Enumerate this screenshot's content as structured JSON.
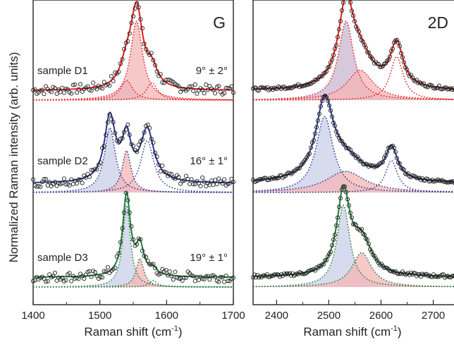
{
  "chart_data": [
    {
      "type": "line",
      "panel_label": "G",
      "xlabel_main": "Raman shift (cm",
      "xlabel_sup": "-1",
      "xlabel_end": ")",
      "ylabel": "Normalized Raman intensity (arb. units)",
      "xlim": [
        1400,
        1700
      ],
      "x_ticks": [
        1400,
        1500,
        1600,
        1700
      ],
      "x_tick_labels": [
        "1400",
        "1500",
        "1600",
        "1700"
      ],
      "y_ticks_shown": false,
      "samples": [
        {
          "name": "sample D1",
          "angle": "9° ± 2°",
          "color": "#e41a1c",
          "baseline": 0.0,
          "peaks": [
            {
              "center": 1540,
              "height": 0.25,
              "fwhm": 22,
              "fill": "#c9b6cf"
            },
            {
              "center": 1555,
              "height": 1.0,
              "fwhm": 22,
              "fill": "#f4b5b5"
            },
            {
              "center": 1578,
              "height": 0.22,
              "fwhm": 20,
              "fill": "none"
            }
          ]
        },
        {
          "name": "sample D2",
          "angle": "16° ± 1°",
          "color": "#2b3590",
          "baseline": 0.0,
          "peaks": [
            {
              "center": 1515,
              "height": 0.85,
              "fwhm": 20,
              "fill": "#c9cfe8"
            },
            {
              "center": 1540,
              "height": 0.55,
              "fwhm": 16,
              "fill": "#f4b5b5"
            },
            {
              "center": 1571,
              "height": 0.68,
              "fwhm": 24,
              "fill": "none"
            }
          ]
        },
        {
          "name": "sample D3",
          "angle": "19° ± 1°",
          "color": "#1f7a3a",
          "baseline": 0.0,
          "peaks": [
            {
              "center": 1540,
              "height": 1.0,
              "fwhm": 14,
              "fill": "#c9cfe8"
            },
            {
              "center": 1560,
              "height": 0.35,
              "fwhm": 14,
              "fill": "#f4b5b5"
            },
            {
              "center": 1580,
              "height": 0.08,
              "fwhm": 14,
              "fill": "none"
            }
          ]
        }
      ]
    },
    {
      "type": "line",
      "panel_label": "2D",
      "xlabel_main": "Raman shift (cm",
      "xlabel_sup": "-1",
      "xlabel_end": ")",
      "xlim": [
        2355,
        2760
      ],
      "x_ticks": [
        2400,
        2500,
        2600,
        2700
      ],
      "x_tick_labels": [
        "2400",
        "2500",
        "2600",
        "2700"
      ],
      "y_ticks_shown": false,
      "samples": [
        {
          "name": "sample D1",
          "color": "#e41a1c",
          "peaks": [
            {
              "center": 2533,
              "height": 1.0,
              "fwhm": 35,
              "fill": "#c9b6cf"
            },
            {
              "center": 2560,
              "height": 0.38,
              "fwhm": 60,
              "fill": "#f4b5b5"
            },
            {
              "center": 2630,
              "height": 0.55,
              "fwhm": 30,
              "fill": "none"
            }
          ]
        },
        {
          "name": "sample D2",
          "color": "#2b3590",
          "peaks": [
            {
              "center": 2492,
              "height": 1.0,
              "fwhm": 40,
              "fill": "#c9cfe8"
            },
            {
              "center": 2532,
              "height": 0.28,
              "fwhm": 90,
              "fill": "#f4b5b5"
            },
            {
              "center": 2620,
              "height": 0.42,
              "fwhm": 28,
              "fill": "none"
            }
          ]
        },
        {
          "name": "sample D3",
          "color": "#1f7a3a",
          "peaks": [
            {
              "center": 2528,
              "height": 1.0,
              "fwhm": 30,
              "fill": "#c9cfe8"
            },
            {
              "center": 2563,
              "height": 0.42,
              "fwhm": 45,
              "fill": "#f4b5b5"
            }
          ]
        }
      ]
    }
  ]
}
